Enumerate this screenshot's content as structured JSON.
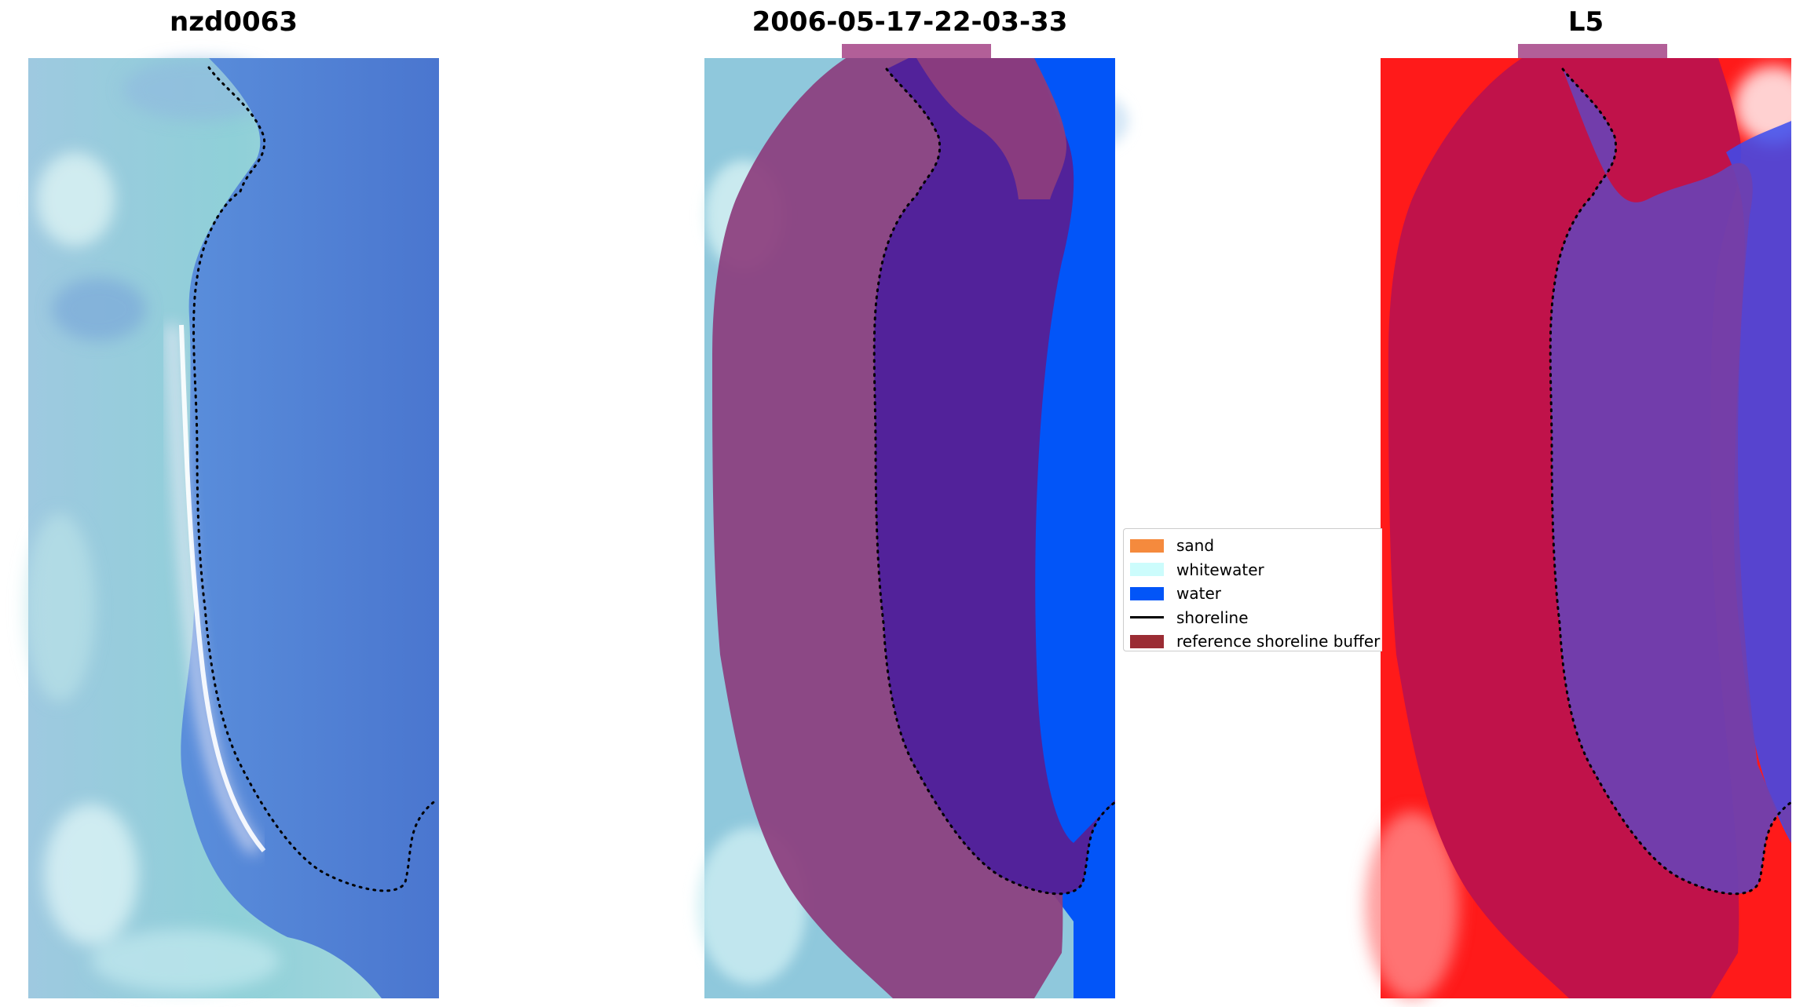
{
  "panels": [
    {
      "title": "nzd0063",
      "kind": "rgb-image"
    },
    {
      "title": "2006-05-17-22-03-33",
      "kind": "classified-overlay"
    },
    {
      "title": "L5",
      "kind": "index-overlay"
    }
  ],
  "legend": {
    "items": [
      {
        "label": "sand",
        "color": "#f58a3d",
        "type": "patch"
      },
      {
        "label": "whitewater",
        "color": "#ccfcfc",
        "type": "patch"
      },
      {
        "label": "water",
        "color": "#0255f8",
        "type": "patch"
      },
      {
        "label": "shoreline",
        "color": "#000000",
        "type": "line"
      },
      {
        "label": "reference shoreline buffer",
        "color": "#9b2c34",
        "type": "patch"
      }
    ]
  },
  "colors": {
    "ocean_blue": "#4f7fd4",
    "land_cyan": "#8fd0d8",
    "water_class": "#0255f8",
    "water_overlay": "#52229a",
    "buffer_overlay": "#8c3d7d",
    "index_red": "#ff1a1a",
    "index_crimson": "#c0124a",
    "index_purple": "#6e40b0"
  }
}
